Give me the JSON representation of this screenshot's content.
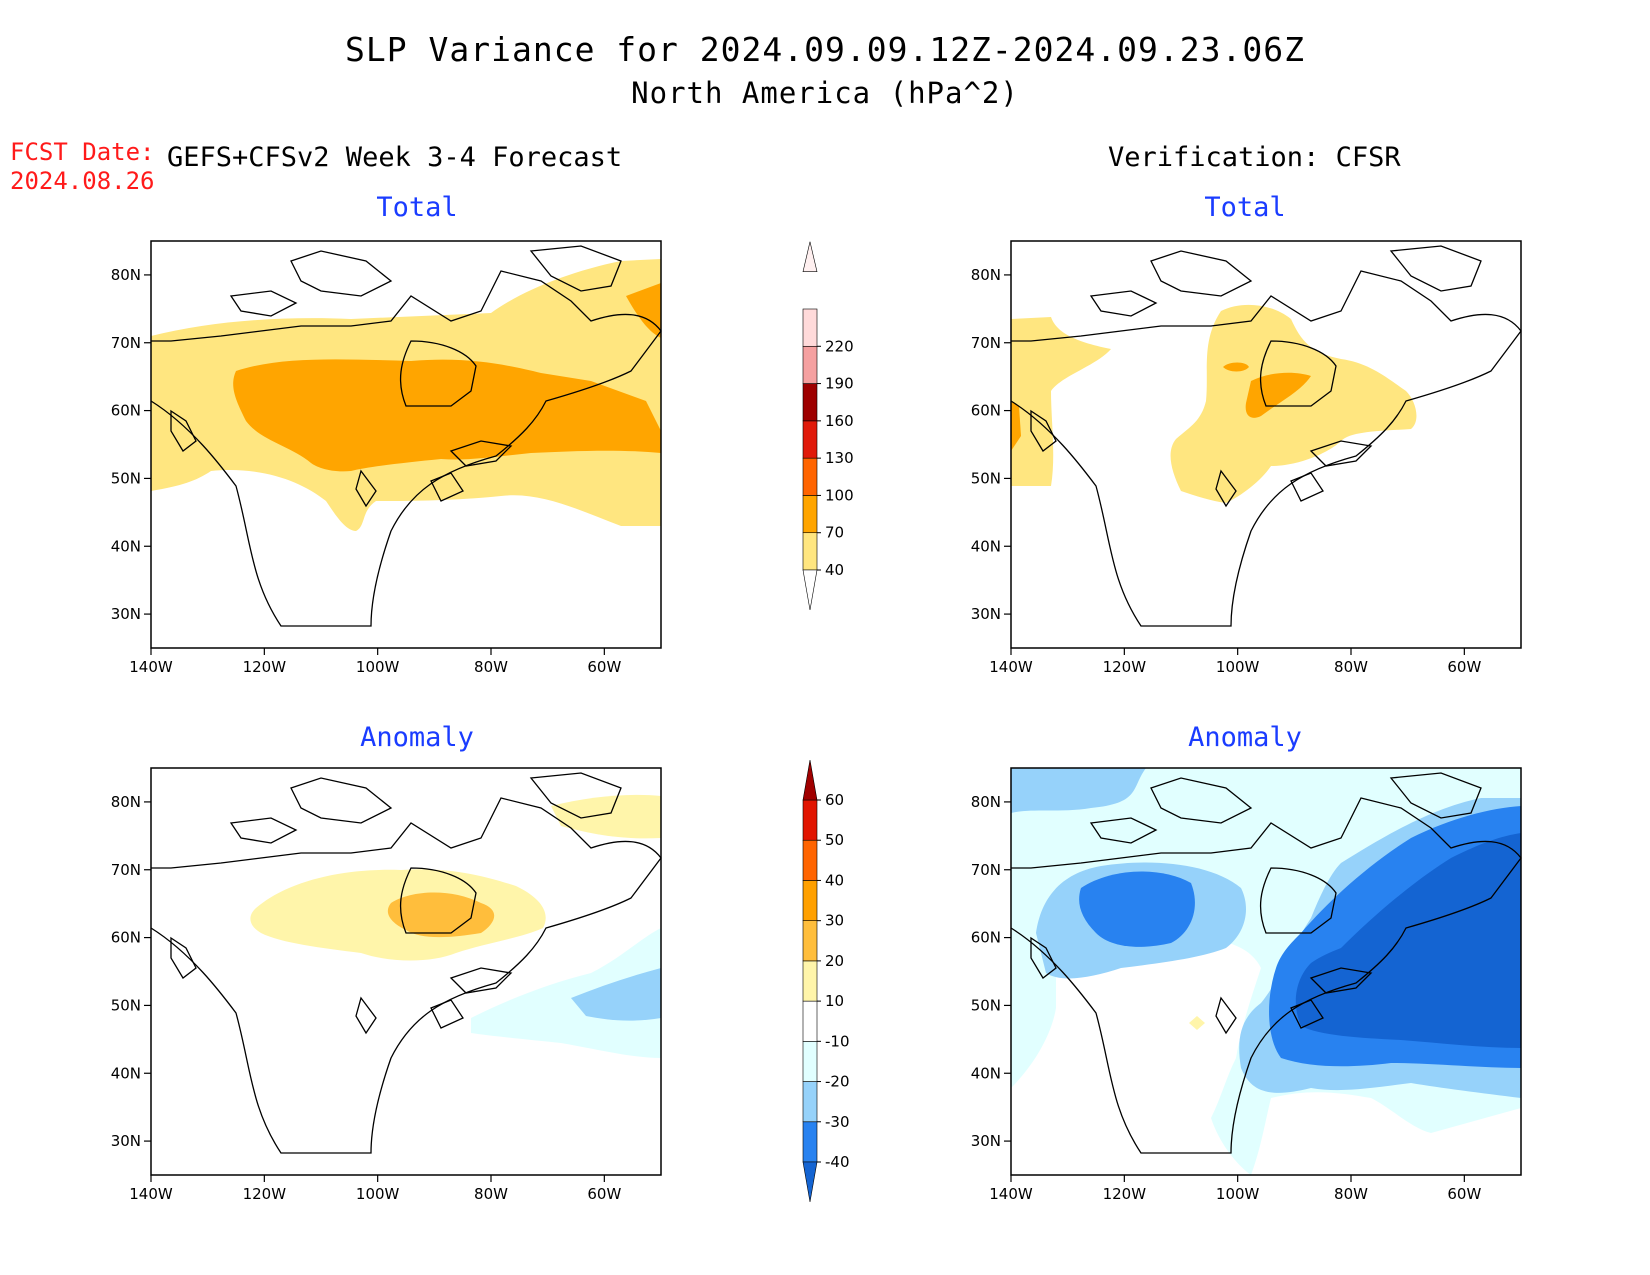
{
  "title_line1": "SLP Variance for 2024.09.09.12Z-2024.09.23.06Z",
  "title_line2": "North America (hPa^2)",
  "fcst_date_label": "FCST Date:",
  "fcst_date_value": "2024.08.26",
  "forecast_header": "GEFS+CFSv2 Week 3-4 Forecast",
  "verification_header": "Verification: CFSR",
  "panels": {
    "forecast_total": {
      "subtitle": "Total"
    },
    "verification_total": {
      "subtitle": "Total"
    },
    "forecast_anomaly": {
      "subtitle": "Anomaly"
    },
    "verification_anomaly": {
      "subtitle": "Anomaly"
    }
  },
  "axes": {
    "lat_ticks": [
      "80N",
      "70N",
      "60N",
      "50N",
      "40N",
      "30N"
    ],
    "lon_ticks": [
      "140W",
      "120W",
      "100W",
      "80W",
      "60W"
    ],
    "lat_range": [
      25,
      85
    ],
    "lon_range": [
      -140,
      -50
    ]
  },
  "colorbar_total": {
    "levels": [
      "40",
      "70",
      "100",
      "130",
      "160",
      "190",
      "220"
    ],
    "colors": [
      "#ffe680",
      "#ffa500",
      "#ff6400",
      "#e01a0a",
      "#9e0000",
      "#f5a0a0",
      "#ffdada"
    ]
  },
  "colorbar_anomaly": {
    "levels": [
      "-40",
      "-30",
      "-20",
      "-10",
      "10",
      "20",
      "30",
      "40",
      "50",
      "60"
    ],
    "colors": [
      "#1464d2",
      "#2882f0",
      "#96d2fa",
      "#e1ffff",
      "#ffffff",
      "#fff5aa",
      "#ffbe3c",
      "#ffa000",
      "#ff6400",
      "#e11400",
      "#a00000"
    ]
  }
}
